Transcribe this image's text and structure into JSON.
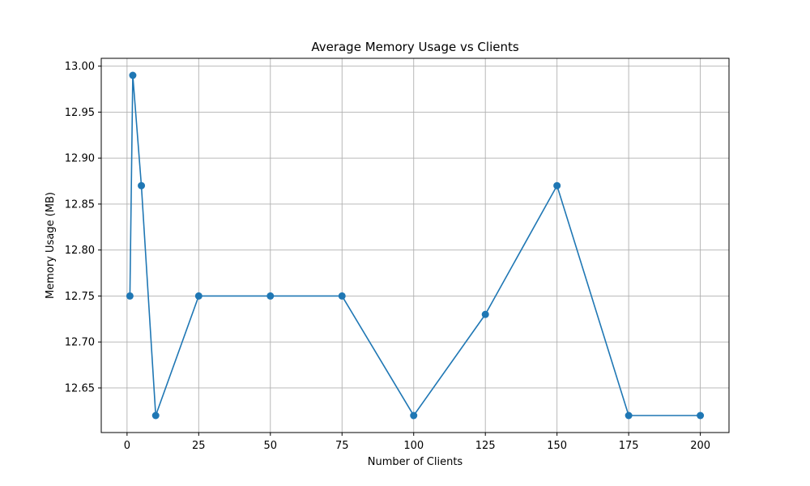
{
  "chart_data": {
    "type": "line",
    "title": "Average Memory Usage vs Clients",
    "xlabel": "Number of Clients",
    "ylabel": "Memory Usage (MB)",
    "x": [
      1,
      2,
      5,
      10,
      25,
      50,
      75,
      100,
      125,
      150,
      175,
      200
    ],
    "series": [
      {
        "values": [
          12.75,
          12.99,
          12.87,
          12.62,
          12.75,
          12.75,
          12.75,
          12.62,
          12.73,
          12.87,
          12.62,
          12.62
        ],
        "color": "#1f77b4"
      }
    ],
    "xlim": [
      -9,
      210
    ],
    "ylim": [
      12.6015,
      13.0085
    ],
    "xticks": [
      0,
      25,
      50,
      75,
      100,
      125,
      150,
      175,
      200
    ],
    "xtick_labels": [
      "0",
      "25",
      "50",
      "75",
      "100",
      "125",
      "150",
      "175",
      "200"
    ],
    "yticks": [
      12.65,
      12.7,
      12.75,
      12.8,
      12.85,
      12.9,
      12.95,
      13.0
    ],
    "ytick_labels": [
      "12.65",
      "12.70",
      "12.75",
      "12.80",
      "12.85",
      "12.90",
      "12.95",
      "13.00"
    ],
    "grid": true,
    "marker": "circle",
    "grid_color": "#b0b0b0",
    "axis_color": "#000000"
  }
}
